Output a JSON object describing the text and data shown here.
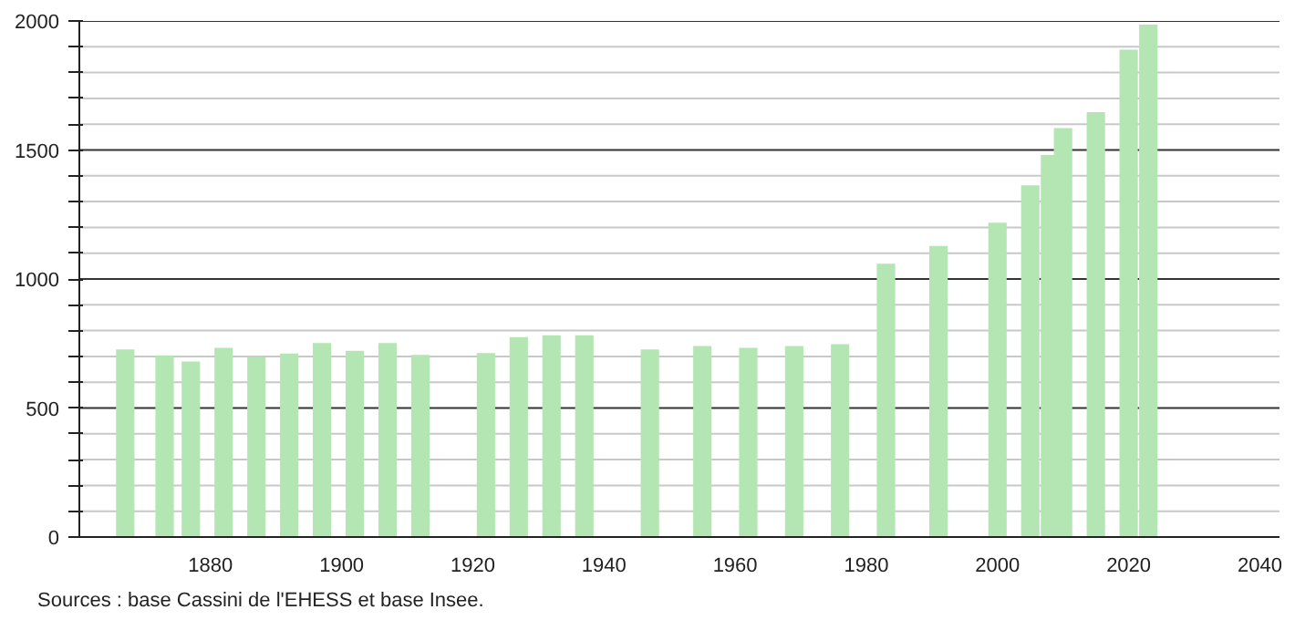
{
  "chart_data": {
    "type": "bar",
    "color": "#b3e6b3",
    "x": [
      1867,
      1873,
      1877,
      1882,
      1887,
      1892,
      1897,
      1902,
      1907,
      1912,
      1922,
      1927,
      1932,
      1937,
      1947,
      1955,
      1962,
      1969,
      1976,
      1983,
      1991,
      2000,
      2005,
      2008,
      2010,
      2015,
      2020,
      2023
    ],
    "values": [
      727,
      704,
      680,
      733,
      697,
      711,
      752,
      722,
      752,
      706,
      713,
      775,
      782,
      782,
      727,
      740,
      733,
      740,
      747,
      1059,
      1128,
      1218,
      1363,
      1481,
      1585,
      1647,
      1889,
      1986
    ],
    "xlim": [
      1860,
      2043
    ],
    "ylim": [
      0,
      2000
    ],
    "xticks": [
      1880,
      1900,
      1920,
      1940,
      1960,
      1980,
      2000,
      2020,
      2040
    ],
    "yticks": [
      0,
      {
        "value": 100,
        "label": null
      },
      {
        "value": 200,
        "label": null
      },
      {
        "value": 300,
        "label": null
      },
      {
        "value": 400,
        "label": null
      },
      500,
      {
        "value": 600,
        "label": null
      },
      {
        "value": 700,
        "label": null
      },
      {
        "value": 800,
        "label": null
      },
      {
        "value": 900,
        "label": null
      },
      1000,
      {
        "value": 1100,
        "label": null
      },
      {
        "value": 1200,
        "label": null
      },
      {
        "value": 1300,
        "label": null
      },
      {
        "value": 1400,
        "label": null
      },
      1500,
      {
        "value": 1600,
        "label": null
      },
      {
        "value": 1700,
        "label": null
      },
      {
        "value": 1800,
        "label": null
      },
      {
        "value": 1900,
        "label": null
      },
      2000
    ],
    "grid": "y",
    "annotations": [
      "Sources : base Cassini de l'EHESS et base Insee."
    ]
  }
}
